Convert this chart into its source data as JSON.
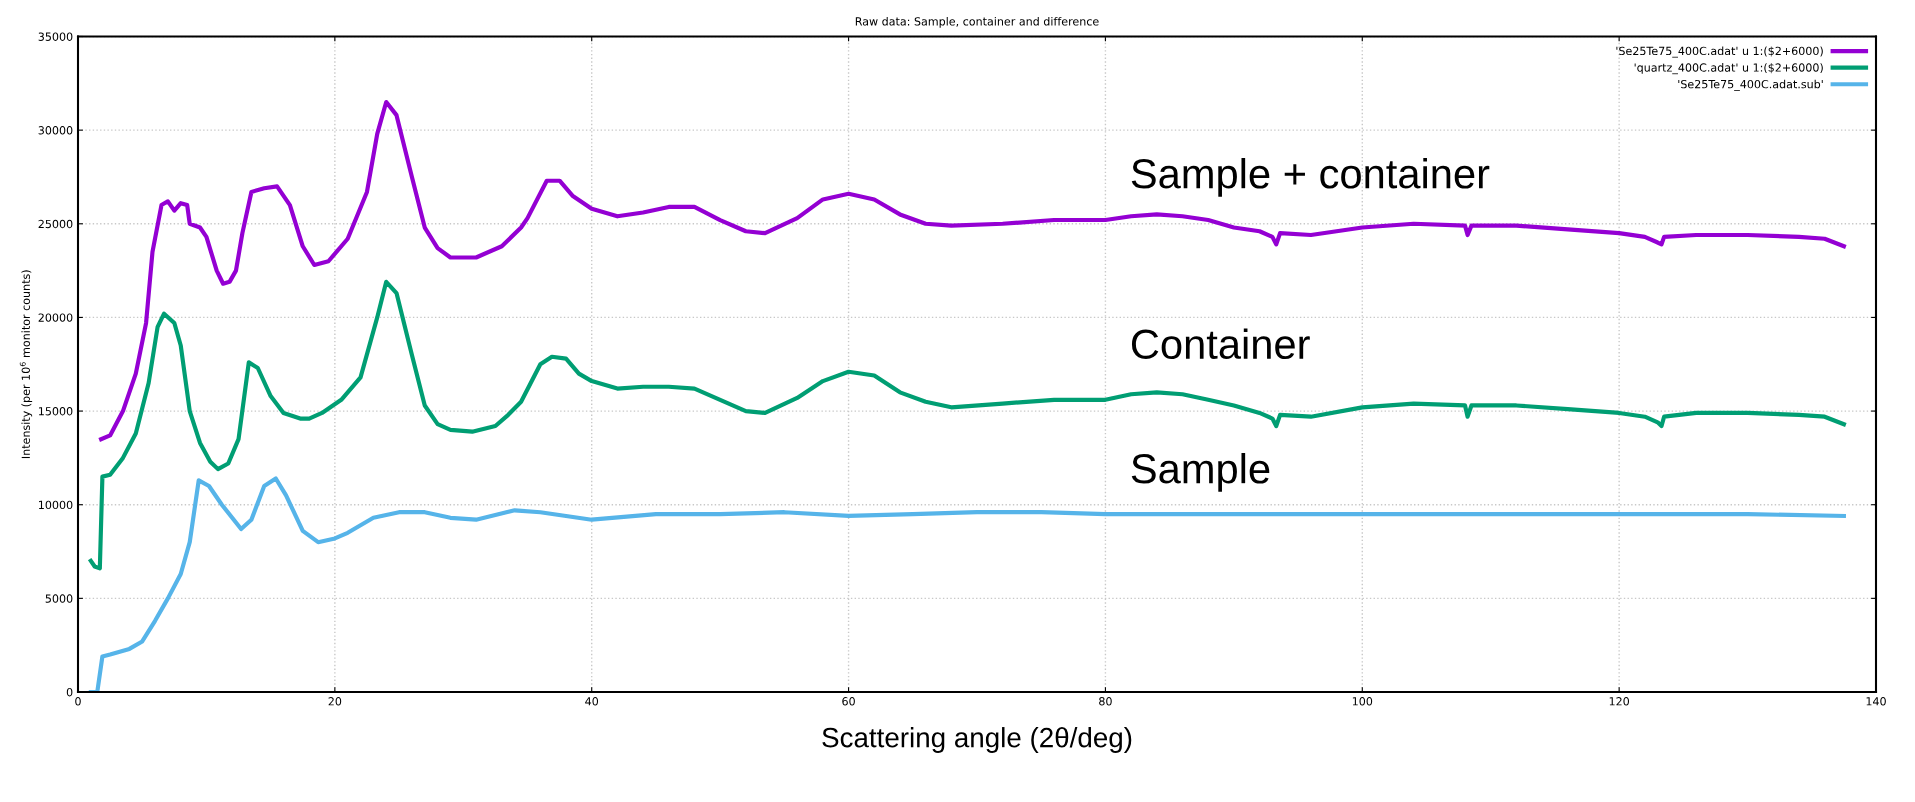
{
  "chart_data": {
    "type": "line",
    "title": "Raw data: Sample, container and difference",
    "xlabel": "Scattering angle (2θ/deg)",
    "ylabel": "Intensity (per 10$^{6}$ monitor counts)",
    "xlim": [
      0,
      140
    ],
    "xticks": [
      0,
      20,
      40,
      60,
      80,
      100,
      120,
      140
    ],
    "ylim": [
      0,
      35000
    ],
    "yticks": [
      0,
      5000,
      10000,
      15000,
      20000,
      25000,
      30000,
      35000
    ],
    "grid": true,
    "legend": "top right",
    "marker": "none",
    "line_style": "solid",
    "annotations": [
      "Sample + container",
      "Container",
      "Sample"
    ],
    "series": [
      {
        "name": "'Se25Te75_400C.adat' u 1:($2+6000)",
        "color": "#9400d3",
        "x": [
          1.8,
          2.5,
          3.5,
          4.5,
          5.3,
          5.8,
          6.5,
          7,
          7.5,
          8,
          8.5,
          8.7,
          9.5,
          10,
          10.8,
          11.3,
          11.8,
          12.3,
          12.8,
          13.5,
          14.5,
          15.5,
          16.5,
          17.5,
          18.4,
          19.5,
          21,
          22.5,
          23.3,
          24,
          24.8,
          26,
          27,
          28,
          29,
          31,
          33,
          34.5,
          35,
          36.5,
          37.5,
          38.5,
          40,
          42,
          44,
          46,
          48,
          50,
          52,
          53.5,
          56,
          58,
          60,
          62,
          64,
          66,
          68,
          72,
          76,
          80,
          82,
          84,
          86,
          88,
          90,
          92,
          93,
          93.3,
          93.6,
          96,
          100,
          104,
          108,
          108.2,
          108.5,
          112,
          116,
          120,
          122,
          123,
          123.3,
          123.5,
          126,
          130,
          134,
          136,
          137.5
        ],
        "values": [
          13500,
          13700,
          15000,
          17000,
          19700,
          23500,
          26000,
          26200,
          25700,
          26100,
          26000,
          25000,
          24800,
          24300,
          22500,
          21800,
          21900,
          22500,
          24500,
          26700,
          26900,
          27000,
          26000,
          23800,
          22800,
          23000,
          24200,
          26700,
          29800,
          31500,
          30800,
          27500,
          24800,
          23700,
          23200,
          23200,
          23800,
          24800,
          25300,
          27300,
          27300,
          26500,
          25800,
          25400,
          25600,
          25900,
          25900,
          25200,
          24600,
          24500,
          25300,
          26300,
          26600,
          26300,
          25500,
          25000,
          24900,
          25000,
          25200,
          25200,
          25400,
          25500,
          25400,
          25200,
          24800,
          24600,
          24300,
          23900,
          24500,
          24400,
          24800,
          25000,
          24900,
          24400,
          24900,
          24900,
          24700,
          24500,
          24300,
          24000,
          23900,
          24300,
          24400,
          24400,
          24300,
          24200,
          23800
        ]
      },
      {
        "name": "'quartz_400C.adat' u 1:($2+6000)",
        "color": "#009e73",
        "x": [
          1,
          1.3,
          1.7,
          1.9,
          2.5,
          3.5,
          4.5,
          5.5,
          6.2,
          6.7,
          7.5,
          8,
          8.7,
          9.5,
          10.3,
          10.9,
          11.7,
          12.5,
          13.3,
          14,
          15,
          16,
          17.3,
          18,
          19,
          20.5,
          22,
          23.3,
          24,
          24.8,
          26,
          27,
          28,
          29,
          30.7,
          32.5,
          33.5,
          34.5,
          36,
          36.9,
          38,
          39,
          40,
          42,
          44,
          46,
          48,
          50,
          52,
          53.5,
          56,
          58,
          60,
          62,
          64,
          66,
          68,
          72,
          76,
          80,
          82,
          84,
          86,
          88,
          90,
          92,
          93,
          93.3,
          93.6,
          96,
          100,
          104,
          108,
          108.2,
          108.5,
          112,
          116,
          120,
          122,
          123,
          123.3,
          123.5,
          126,
          130,
          134,
          136,
          137.5
        ],
        "values": [
          7000,
          6700,
          6600,
          11500,
          11600,
          12500,
          13800,
          16500,
          19500,
          20200,
          19700,
          18500,
          15000,
          13300,
          12300,
          11900,
          12200,
          13500,
          17600,
          17300,
          15800,
          14900,
          14600,
          14600,
          14900,
          15600,
          16800,
          20000,
          21900,
          21300,
          18000,
          15300,
          14300,
          14000,
          13900,
          14200,
          14800,
          15500,
          17500,
          17900,
          17800,
          17000,
          16600,
          16200,
          16300,
          16300,
          16200,
          15600,
          15000,
          14900,
          15700,
          16600,
          17100,
          16900,
          16000,
          15500,
          15200,
          15400,
          15600,
          15600,
          15900,
          16000,
          15900,
          15600,
          15300,
          14900,
          14600,
          14200,
          14800,
          14700,
          15200,
          15400,
          15300,
          14700,
          15300,
          15300,
          15100,
          14900,
          14700,
          14400,
          14200,
          14700,
          14900,
          14900,
          14800,
          14700,
          14300
        ]
      },
      {
        "name": "'Se25Te75_400C.adat.sub'",
        "color": "#56b4e9",
        "x": [
          1,
          1.5,
          1.9,
          2.5,
          4,
          5,
          6,
          7,
          8,
          8.7,
          9.4,
          10.2,
          11.2,
          12.7,
          13.5,
          14.5,
          15.4,
          16.2,
          17.5,
          18.7,
          20,
          21,
          23,
          25,
          27,
          29,
          31,
          34,
          36,
          40,
          45,
          50,
          55,
          60,
          65,
          70,
          75,
          80,
          90,
          100,
          110,
          120,
          130,
          137.5
        ],
        "values": [
          0,
          0,
          1900,
          2000,
          2300,
          2700,
          3800,
          5000,
          6300,
          8000,
          11300,
          11000,
          10000,
          8700,
          9200,
          11000,
          11400,
          10500,
          8600,
          8000,
          8200,
          8500,
          9300,
          9600,
          9600,
          9300,
          9200,
          9700,
          9600,
          9200,
          9500,
          9500,
          9600,
          9400,
          9500,
          9600,
          9600,
          9500,
          9500,
          9500,
          9500,
          9500,
          9500,
          9400
        ]
      }
    ]
  }
}
